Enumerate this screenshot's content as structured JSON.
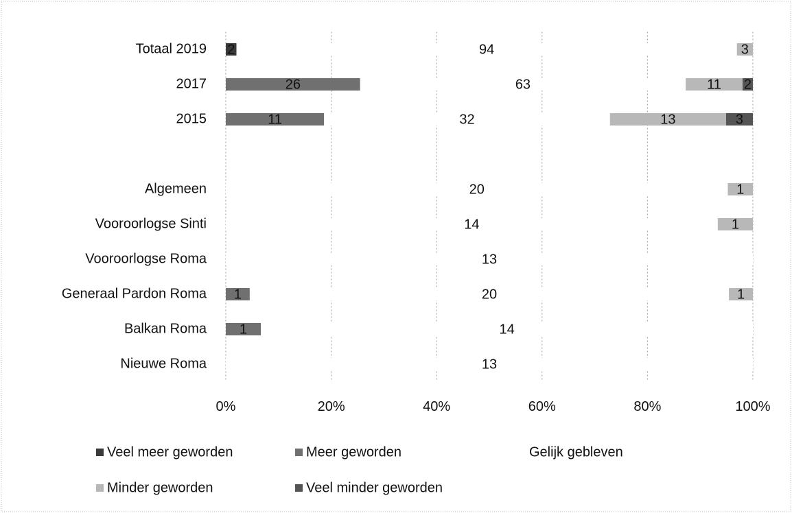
{
  "chart_data": {
    "type": "bar",
    "orientation": "horizontal",
    "stacked": "percent",
    "categories": [
      "Totaal 2019",
      "2017",
      "2015",
      null,
      "Algemeen",
      "Vooroorlogse Sinti",
      "Vooroorlogse Roma",
      "Generaal Pardon Roma",
      "Balkan Roma",
      "Nieuwe Roma"
    ],
    "series": [
      {
        "name": "Veel meer geworden",
        "color": "#3a3a3a",
        "values": [
          2,
          null,
          null,
          null,
          null,
          null,
          null,
          null,
          null,
          null
        ]
      },
      {
        "name": "Meer geworden",
        "color": "#707070",
        "values": [
          null,
          26,
          11,
          null,
          null,
          null,
          null,
          1,
          1,
          null
        ]
      },
      {
        "name": "Gelijk gebleven",
        "color": "#ffffff",
        "values": [
          94,
          63,
          32,
          null,
          20,
          14,
          13,
          20,
          14,
          13
        ]
      },
      {
        "name": "Minder geworden",
        "color": "#b8b8b8",
        "values": [
          3,
          11,
          13,
          null,
          1,
          1,
          null,
          1,
          null,
          null
        ]
      },
      {
        "name": "Veel minder geworden",
        "color": "#555555",
        "values": [
          null,
          2,
          3,
          null,
          null,
          null,
          null,
          null,
          null,
          null
        ]
      }
    ],
    "xlim": [
      0,
      100
    ],
    "xticks": [
      {
        "value": 0,
        "label": "0%"
      },
      {
        "value": 20,
        "label": "20%"
      },
      {
        "value": 40,
        "label": "40%"
      },
      {
        "value": 60,
        "label": "60%"
      },
      {
        "value": 80,
        "label": "80%"
      },
      {
        "value": 100,
        "label": "100%"
      }
    ],
    "grid": true,
    "legend": "bottom"
  }
}
